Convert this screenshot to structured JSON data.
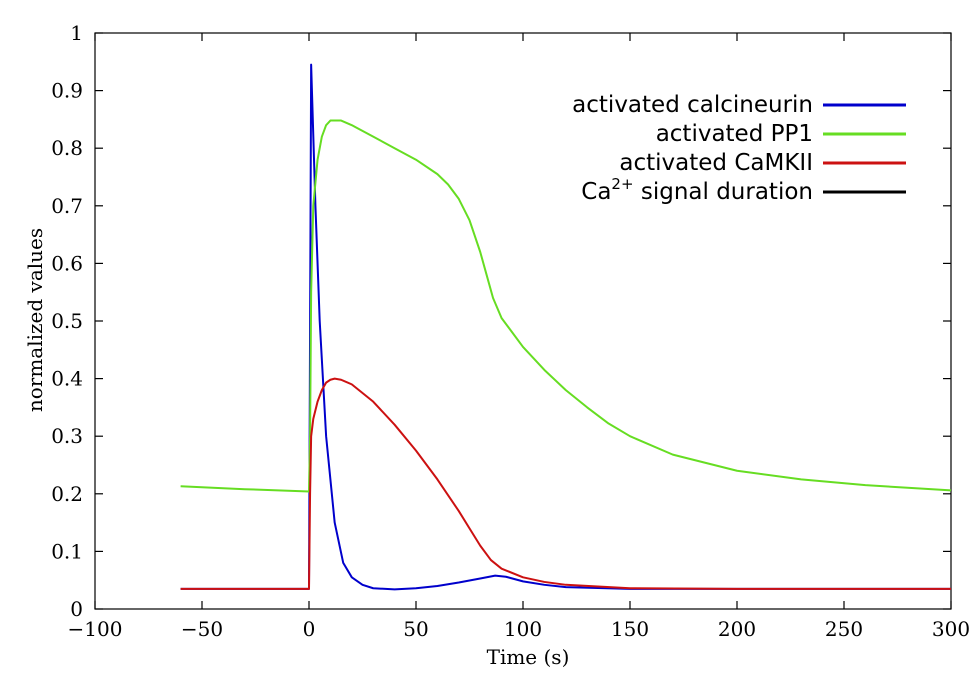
{
  "chart_data": {
    "type": "line",
    "title": "",
    "xlabel": "Time (s)",
    "ylabel": "normalized values",
    "xlim": [
      -100,
      300
    ],
    "ylim": [
      0,
      1
    ],
    "x_ticks": [
      -100,
      -50,
      0,
      50,
      100,
      150,
      200,
      250,
      300
    ],
    "x_tick_labels": [
      "−100",
      "−50",
      "0",
      "50",
      "100",
      "150",
      "200",
      "250",
      "300"
    ],
    "y_ticks": [
      0,
      0.1,
      0.2,
      0.3,
      0.4,
      0.5,
      0.6,
      0.7,
      0.8,
      0.9,
      1
    ],
    "y_tick_labels": [
      "0",
      "0.1",
      "0.2",
      "0.3",
      "0.4",
      "0.5",
      "0.6",
      "0.7",
      "0.8",
      "0.9",
      "1"
    ],
    "grid": false,
    "legend_position": "top-right",
    "series": [
      {
        "name": "activated calcineurin",
        "color": "#0000cc",
        "x": [
          -60,
          0,
          0.3,
          1,
          3,
          5,
          8,
          12,
          16,
          20,
          25,
          30,
          40,
          50,
          60,
          70,
          80,
          87,
          92,
          100,
          110,
          120,
          150,
          200,
          250,
          300
        ],
        "y": [
          0.035,
          0.035,
          0.3,
          0.945,
          0.7,
          0.5,
          0.3,
          0.15,
          0.08,
          0.055,
          0.042,
          0.036,
          0.034,
          0.036,
          0.04,
          0.046,
          0.053,
          0.058,
          0.056,
          0.048,
          0.042,
          0.038,
          0.035,
          0.035,
          0.035,
          0.035
        ]
      },
      {
        "name": "activated PP1",
        "color": "#66dd22",
        "x": [
          -60,
          -30,
          0,
          0.5,
          1,
          2,
          4,
          6,
          8,
          10,
          15,
          20,
          30,
          40,
          50,
          60,
          65,
          70,
          75,
          80,
          83,
          86,
          90,
          95,
          100,
          110,
          120,
          130,
          140,
          150,
          170,
          200,
          230,
          260,
          300
        ],
        "y": [
          0.213,
          0.208,
          0.204,
          0.3,
          0.55,
          0.7,
          0.78,
          0.82,
          0.84,
          0.848,
          0.848,
          0.84,
          0.82,
          0.8,
          0.78,
          0.755,
          0.737,
          0.712,
          0.675,
          0.62,
          0.58,
          0.54,
          0.505,
          0.48,
          0.455,
          0.415,
          0.38,
          0.35,
          0.322,
          0.3,
          0.268,
          0.24,
          0.225,
          0.215,
          0.206
        ]
      },
      {
        "name": "activated CaMKII",
        "color": "#cc1111",
        "x": [
          -60,
          0,
          0.5,
          1,
          2,
          4,
          6,
          8,
          10,
          12,
          15,
          20,
          30,
          40,
          50,
          60,
          70,
          75,
          80,
          85,
          90,
          100,
          110,
          120,
          150,
          200,
          250,
          300
        ],
        "y": [
          0.035,
          0.035,
          0.2,
          0.3,
          0.33,
          0.36,
          0.38,
          0.393,
          0.398,
          0.4,
          0.398,
          0.39,
          0.36,
          0.32,
          0.275,
          0.225,
          0.17,
          0.14,
          0.11,
          0.085,
          0.07,
          0.055,
          0.047,
          0.042,
          0.036,
          0.035,
          0.035,
          0.035
        ]
      },
      {
        "name": "signal duration",
        "legend_prefix": "Ca",
        "legend_superscript": "2+",
        "color": "#000000",
        "x": [],
        "y": []
      }
    ]
  }
}
